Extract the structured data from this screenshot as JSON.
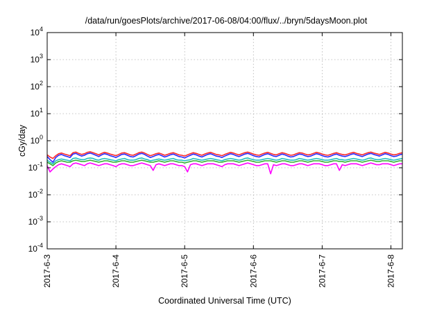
{
  "chart_data": {
    "type": "area",
    "title": "/data/run/goesPlots/archive/2017-06-08/04:00/flux/../bryn/5daysMoon.plot",
    "xlabel": "Coordinated Universal Time (UTC)",
    "ylabel": "cGy/day",
    "yscale": "log",
    "ylim": [
      0.0001,
      10000
    ],
    "yticks": [
      {
        "base": "10",
        "exp": "-4",
        "value": 0.0001
      },
      {
        "base": "10",
        "exp": "-3",
        "value": 0.001
      },
      {
        "base": "10",
        "exp": "-2",
        "value": 0.01
      },
      {
        "base": "10",
        "exp": "-1",
        "value": 0.1
      },
      {
        "base": "10",
        "exp": "0",
        "value": 1
      },
      {
        "base": "10",
        "exp": "1",
        "value": 10
      },
      {
        "base": "10",
        "exp": "2",
        "value": 100
      },
      {
        "base": "10",
        "exp": "3",
        "value": 1000
      },
      {
        "base": "10",
        "exp": "4",
        "value": 10000
      }
    ],
    "xlim": [
      "2017-06-03 00:00",
      "2017-06-08 04:00"
    ],
    "xticks": [
      "2017-6-3",
      "2017-6-4",
      "2017-6-5",
      "2017-6-6",
      "2017-6-7",
      "2017-6-8"
    ],
    "grid": true,
    "sample_interval_hours": 1,
    "series": [
      {
        "color": "#ff2a2a",
        "typical": 0.32,
        "values": [
          0.3,
          0.25,
          0.22,
          0.28,
          0.33,
          0.35,
          0.32,
          0.3,
          0.28,
          0.36,
          0.38,
          0.34,
          0.31,
          0.33,
          0.37,
          0.39,
          0.36,
          0.33,
          0.3,
          0.34,
          0.37,
          0.35,
          0.32,
          0.3,
          0.28,
          0.31,
          0.35,
          0.36,
          0.33,
          0.3,
          0.29,
          0.32,
          0.36,
          0.38,
          0.35,
          0.31,
          0.28,
          0.3,
          0.33,
          0.35,
          0.32,
          0.29,
          0.31,
          0.34,
          0.36,
          0.33,
          0.3,
          0.29,
          0.27,
          0.3,
          0.33,
          0.36,
          0.34,
          0.31,
          0.29,
          0.32,
          0.35,
          0.37,
          0.34,
          0.31,
          0.3,
          0.28,
          0.31,
          0.34,
          0.37,
          0.35,
          0.32,
          0.3,
          0.33,
          0.36,
          0.38,
          0.35,
          0.32,
          0.3,
          0.29,
          0.32,
          0.35,
          0.37,
          0.34,
          0.31,
          0.3,
          0.33,
          0.36,
          0.34,
          0.31,
          0.29,
          0.3,
          0.33,
          0.36,
          0.35,
          0.32,
          0.3,
          0.31,
          0.34,
          0.37,
          0.35,
          0.32,
          0.3,
          0.29,
          0.31,
          0.34,
          0.36,
          0.33,
          0.31,
          0.3,
          0.32,
          0.35,
          0.37,
          0.34,
          0.32,
          0.3,
          0.33,
          0.36,
          0.38,
          0.35,
          0.33,
          0.31,
          0.34,
          0.37,
          0.35,
          0.32,
          0.3,
          0.31,
          0.34,
          0.36
        ]
      },
      {
        "color": "#2a2aff",
        "typical": 0.28,
        "values": [
          0.26,
          0.2,
          0.16,
          0.24,
          0.29,
          0.31,
          0.28,
          0.26,
          0.24,
          0.32,
          0.34,
          0.3,
          0.27,
          0.29,
          0.33,
          0.35,
          0.32,
          0.29,
          0.26,
          0.3,
          0.33,
          0.31,
          0.28,
          0.26,
          0.24,
          0.27,
          0.31,
          0.32,
          0.29,
          0.26,
          0.25,
          0.28,
          0.32,
          0.34,
          0.31,
          0.27,
          0.24,
          0.26,
          0.29,
          0.31,
          0.28,
          0.25,
          0.27,
          0.3,
          0.32,
          0.29,
          0.26,
          0.25,
          0.23,
          0.26,
          0.29,
          0.32,
          0.3,
          0.27,
          0.25,
          0.28,
          0.31,
          0.33,
          0.3,
          0.27,
          0.26,
          0.24,
          0.27,
          0.3,
          0.33,
          0.31,
          0.28,
          0.26,
          0.29,
          0.32,
          0.34,
          0.31,
          0.28,
          0.26,
          0.25,
          0.28,
          0.31,
          0.33,
          0.3,
          0.27,
          0.26,
          0.29,
          0.32,
          0.3,
          0.27,
          0.25,
          0.26,
          0.29,
          0.32,
          0.31,
          0.28,
          0.26,
          0.27,
          0.3,
          0.33,
          0.31,
          0.28,
          0.26,
          0.25,
          0.27,
          0.3,
          0.32,
          0.29,
          0.27,
          0.26,
          0.28,
          0.31,
          0.33,
          0.3,
          0.28,
          0.26,
          0.29,
          0.32,
          0.34,
          0.31,
          0.29,
          0.27,
          0.3,
          0.33,
          0.31,
          0.28,
          0.26,
          0.27,
          0.3,
          0.32
        ]
      },
      {
        "color": "#1fbfbf",
        "typical": 0.2,
        "values": [
          0.19,
          0.16,
          0.14,
          0.18,
          0.2,
          0.21,
          0.2,
          0.19,
          0.18,
          0.22,
          0.23,
          0.21,
          0.2,
          0.2,
          0.22,
          0.23,
          0.22,
          0.2,
          0.19,
          0.21,
          0.22,
          0.21,
          0.2,
          0.19,
          0.18,
          0.2,
          0.21,
          0.22,
          0.2,
          0.19,
          0.19,
          0.2,
          0.22,
          0.23,
          0.21,
          0.2,
          0.18,
          0.19,
          0.2,
          0.21,
          0.2,
          0.19,
          0.2,
          0.21,
          0.22,
          0.2,
          0.19,
          0.19,
          0.18,
          0.19,
          0.2,
          0.22,
          0.21,
          0.2,
          0.19,
          0.2,
          0.21,
          0.22,
          0.21,
          0.2,
          0.19,
          0.18,
          0.2,
          0.21,
          0.22,
          0.21,
          0.2,
          0.19,
          0.2,
          0.22,
          0.23,
          0.21,
          0.2,
          0.19,
          0.19,
          0.2,
          0.21,
          0.22,
          0.21,
          0.2,
          0.19,
          0.2,
          0.22,
          0.21,
          0.2,
          0.19,
          0.19,
          0.2,
          0.22,
          0.21,
          0.2,
          0.19,
          0.2,
          0.21,
          0.22,
          0.21,
          0.2,
          0.19,
          0.19,
          0.2,
          0.21,
          0.22,
          0.2,
          0.2,
          0.19,
          0.2,
          0.21,
          0.22,
          0.21,
          0.2,
          0.19,
          0.2,
          0.22,
          0.23,
          0.21,
          0.2,
          0.2,
          0.21,
          0.22,
          0.21,
          0.2,
          0.19,
          0.2,
          0.21,
          0.22
        ]
      },
      {
        "color": "#2db32d",
        "typical": 0.17,
        "values": [
          0.16,
          0.14,
          0.12,
          0.15,
          0.17,
          0.18,
          0.17,
          0.16,
          0.16,
          0.18,
          0.19,
          0.18,
          0.17,
          0.17,
          0.18,
          0.19,
          0.18,
          0.17,
          0.16,
          0.17,
          0.18,
          0.18,
          0.17,
          0.16,
          0.16,
          0.17,
          0.18,
          0.18,
          0.17,
          0.16,
          0.16,
          0.17,
          0.18,
          0.19,
          0.18,
          0.17,
          0.16,
          0.16,
          0.17,
          0.18,
          0.17,
          0.16,
          0.17,
          0.18,
          0.18,
          0.17,
          0.16,
          0.16,
          0.15,
          0.16,
          0.17,
          0.18,
          0.18,
          0.17,
          0.16,
          0.17,
          0.18,
          0.18,
          0.18,
          0.17,
          0.16,
          0.16,
          0.17,
          0.18,
          0.18,
          0.18,
          0.17,
          0.16,
          0.17,
          0.18,
          0.19,
          0.18,
          0.17,
          0.16,
          0.16,
          0.17,
          0.18,
          0.18,
          0.18,
          0.17,
          0.16,
          0.17,
          0.18,
          0.18,
          0.17,
          0.16,
          0.16,
          0.17,
          0.18,
          0.18,
          0.17,
          0.16,
          0.17,
          0.18,
          0.18,
          0.18,
          0.17,
          0.16,
          0.16,
          0.17,
          0.18,
          0.18,
          0.17,
          0.17,
          0.16,
          0.17,
          0.18,
          0.18,
          0.18,
          0.17,
          0.16,
          0.17,
          0.18,
          0.19,
          0.18,
          0.17,
          0.17,
          0.18,
          0.18,
          0.18,
          0.17,
          0.16,
          0.17,
          0.18,
          0.18
        ]
      },
      {
        "color": "#ff00ff",
        "typical": 0.13,
        "values": [
          0.12,
          0.07,
          0.09,
          0.11,
          0.13,
          0.14,
          0.13,
          0.12,
          0.11,
          0.14,
          0.15,
          0.14,
          0.13,
          0.12,
          0.14,
          0.15,
          0.14,
          0.13,
          0.12,
          0.13,
          0.14,
          0.14,
          0.13,
          0.12,
          0.11,
          0.13,
          0.14,
          0.14,
          0.13,
          0.12,
          0.12,
          0.13,
          0.14,
          0.15,
          0.14,
          0.13,
          0.12,
          0.08,
          0.13,
          0.14,
          0.13,
          0.12,
          0.13,
          0.14,
          0.14,
          0.13,
          0.12,
          0.12,
          0.11,
          0.07,
          0.13,
          0.14,
          0.14,
          0.13,
          0.12,
          0.13,
          0.14,
          0.14,
          0.14,
          0.13,
          0.12,
          0.11,
          0.13,
          0.14,
          0.14,
          0.14,
          0.13,
          0.12,
          0.13,
          0.14,
          0.15,
          0.14,
          0.13,
          0.12,
          0.12,
          0.13,
          0.14,
          0.14,
          0.06,
          0.13,
          0.12,
          0.13,
          0.14,
          0.14,
          0.13,
          0.12,
          0.12,
          0.13,
          0.14,
          0.14,
          0.13,
          0.12,
          0.13,
          0.14,
          0.14,
          0.14,
          0.13,
          0.12,
          0.12,
          0.13,
          0.14,
          0.14,
          0.08,
          0.13,
          0.12,
          0.13,
          0.14,
          0.14,
          0.14,
          0.13,
          0.12,
          0.13,
          0.14,
          0.15,
          0.14,
          0.13,
          0.13,
          0.14,
          0.14,
          0.14,
          0.13,
          0.12,
          0.13,
          0.14,
          0.14
        ]
      }
    ]
  }
}
